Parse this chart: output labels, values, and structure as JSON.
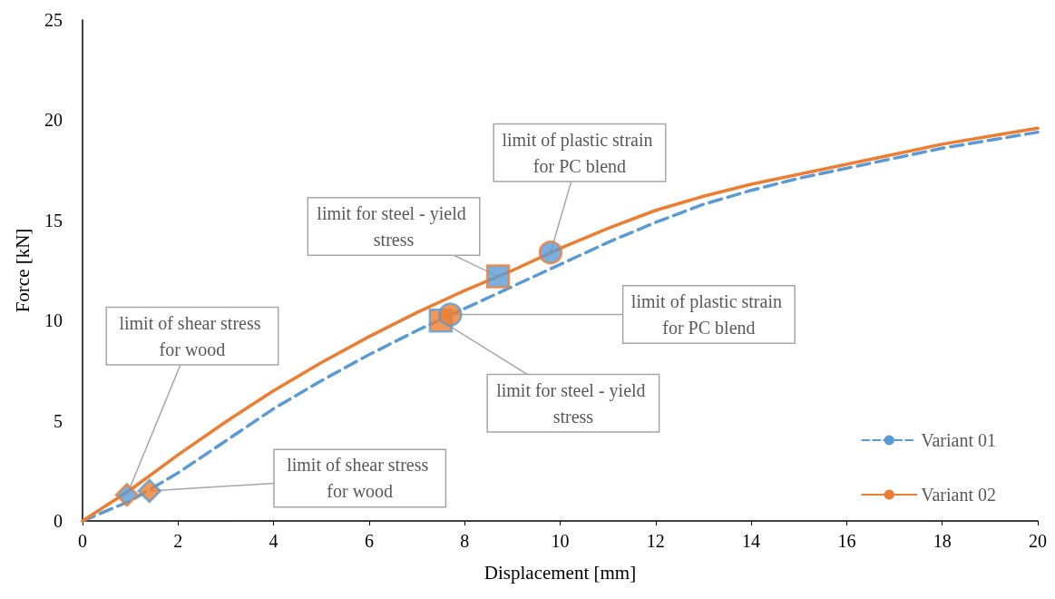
{
  "chart_data": {
    "type": "line",
    "xlabel": "Displacement [mm]",
    "ylabel": "Force [kN]",
    "xlim": [
      0,
      20
    ],
    "xticks": [
      0,
      2,
      4,
      6,
      8,
      10,
      12,
      14,
      16,
      18,
      20
    ],
    "ylim": [
      0,
      25
    ],
    "yticks": [
      0,
      5,
      10,
      15,
      20,
      25
    ],
    "grid": false,
    "legend": "bottom right",
    "series": [
      {
        "name": "Variant 01",
        "line_style": "dashed",
        "color": "#5b9bd5",
        "x": [
          0,
          1,
          2,
          3,
          4,
          5,
          6,
          7,
          8,
          9,
          10,
          11,
          12,
          13,
          14,
          15,
          16,
          17,
          18,
          19,
          20
        ],
        "values": [
          0,
          1.0,
          2.4,
          4.0,
          5.6,
          7.0,
          8.3,
          9.5,
          10.6,
          11.7,
          12.8,
          13.9,
          14.9,
          15.8,
          16.5,
          17.1,
          17.6,
          18.1,
          18.6,
          19.0,
          19.4
        ]
      },
      {
        "name": "Variant 02",
        "line_style": "solid",
        "color": "#ed7d31",
        "x": [
          0,
          1,
          2,
          3,
          4,
          5,
          6,
          7,
          8,
          9,
          10,
          11,
          12,
          13,
          14,
          15,
          16,
          17,
          18,
          19,
          20
        ],
        "values": [
          0,
          1.55,
          3.3,
          4.95,
          6.5,
          7.9,
          9.2,
          10.4,
          11.5,
          12.5,
          13.6,
          14.6,
          15.5,
          16.2,
          16.8,
          17.3,
          17.8,
          18.3,
          18.8,
          19.2,
          19.6
        ]
      },
      {
        "type": "scatter",
        "marker": "diamond",
        "color": "#5b9bd5",
        "x": [
          0.93
        ],
        "values": [
          1.3
        ]
      },
      {
        "type": "scatter",
        "marker": "square",
        "color": "#5b9bd5",
        "x": [
          8.7
        ],
        "values": [
          12.2
        ]
      },
      {
        "type": "scatter",
        "marker": "circle",
        "color": "#5b9bd5",
        "x": [
          9.8
        ],
        "values": [
          13.4
        ]
      },
      {
        "type": "scatter",
        "marker": "diamond",
        "color": "#ed7d31",
        "x": [
          1.4
        ],
        "values": [
          1.5
        ]
      },
      {
        "type": "scatter",
        "marker": "square",
        "color": "#ed7d31",
        "x": [
          7.5
        ],
        "values": [
          10.0
        ]
      },
      {
        "type": "scatter",
        "marker": "circle",
        "color": "#ed7d31",
        "x": [
          7.7
        ],
        "values": [
          10.3
        ]
      }
    ],
    "annotations": [
      {
        "text": "limit of shear stress for wood",
        "x": 0.93,
        "y": 1.3
      },
      {
        "text": "limit for steel - yield stress",
        "x": 8.7,
        "y": 12.2
      },
      {
        "text": "limit of plastic strain for PC blend",
        "x": 9.8,
        "y": 13.4
      },
      {
        "text": "limit of shear stress for wood",
        "x": 1.4,
        "y": 1.5
      },
      {
        "text": "limit for steel - yield stress",
        "x": 7.5,
        "y": 10.0
      },
      {
        "text": "limit of plastic strain for PC blend",
        "x": 7.7,
        "y": 10.3
      }
    ]
  }
}
